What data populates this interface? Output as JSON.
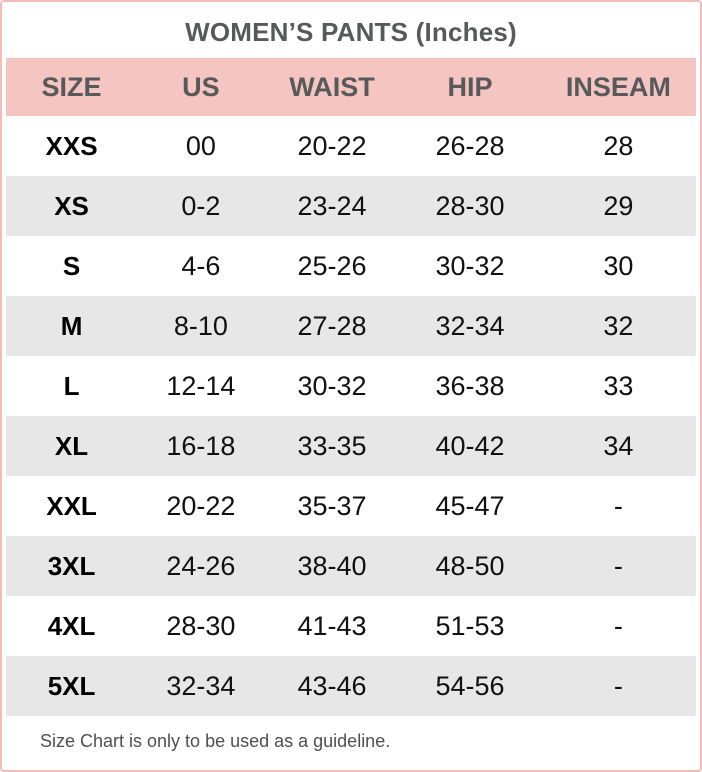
{
  "title": "WOMEN’S PANTS (Inches)",
  "chart_data": {
    "type": "table",
    "title": "WOMEN’S PANTS (Inches)",
    "columns": [
      "SIZE",
      "US",
      "WAIST",
      "HIP",
      "INSEAM"
    ],
    "rows": [
      [
        "XXS",
        "00",
        "20-22",
        "26-28",
        "28"
      ],
      [
        "XS",
        "0-2",
        "23-24",
        "28-30",
        "29"
      ],
      [
        "S",
        "4-6",
        "25-26",
        "30-32",
        "30"
      ],
      [
        "M",
        "8-10",
        "27-28",
        "32-34",
        "32"
      ],
      [
        "L",
        "12-14",
        "30-32",
        "36-38",
        "33"
      ],
      [
        "XL",
        "16-18",
        "33-35",
        "40-42",
        "34"
      ],
      [
        "XXL",
        "20-22",
        "35-37",
        "45-47",
        "-"
      ],
      [
        "3XL",
        "24-26",
        "38-40",
        "48-50",
        "-"
      ],
      [
        "4XL",
        "28-30",
        "41-43",
        "51-53",
        "-"
      ],
      [
        "5XL",
        "32-34",
        "43-46",
        "54-56",
        "-"
      ]
    ]
  },
  "footnote": "Size Chart is only to be used as a guideline.",
  "colors": {
    "border": "#f6bcb8",
    "header_bg": "#f4c5c1",
    "alt_row_bg": "#e7e7e7",
    "heading_text": "#58595b",
    "body_text": "#111111",
    "note_text": "#4f4f4f"
  }
}
